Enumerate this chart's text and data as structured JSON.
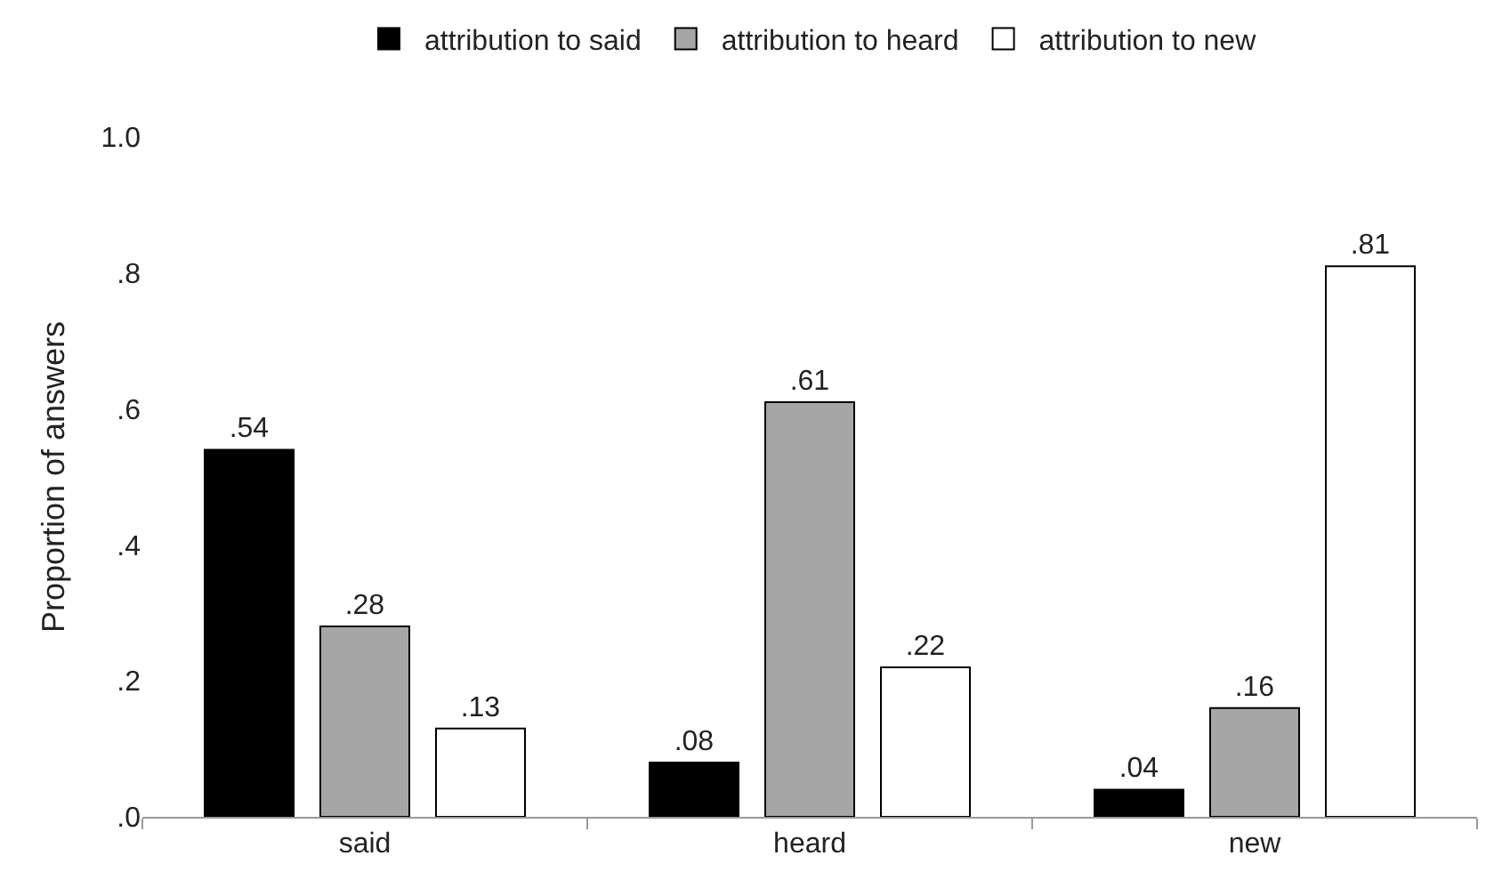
{
  "chart_data": {
    "type": "bar",
    "ylabel": "Proportion of answers",
    "categories": [
      "said",
      "heard",
      "new"
    ],
    "series": [
      {
        "name": "attribution to said",
        "color": "#000000",
        "values": [
          0.54,
          0.08,
          0.04
        ],
        "value_labels": [
          ".54",
          ".08",
          ".04"
        ]
      },
      {
        "name": "attribution to heard",
        "color": "#a6a6a6",
        "values": [
          0.28,
          0.61,
          0.16
        ],
        "value_labels": [
          ".28",
          ".61",
          ".16"
        ]
      },
      {
        "name": "attribution to new",
        "color": "#ffffff",
        "values": [
          0.13,
          0.22,
          0.81
        ],
        "value_labels": [
          ".13",
          ".22",
          ".81"
        ]
      }
    ],
    "ylim": [
      0,
      1
    ],
    "yticks": [
      {
        "value": 0,
        "label": ".0"
      },
      {
        "value": 0.2,
        "label": ".2"
      },
      {
        "value": 0.4,
        "label": ".4"
      },
      {
        "value": 0.6,
        "label": ".6"
      },
      {
        "value": 0.8,
        "label": ".8"
      },
      {
        "value": 1,
        "label": "1.0"
      }
    ],
    "legend": "top"
  }
}
